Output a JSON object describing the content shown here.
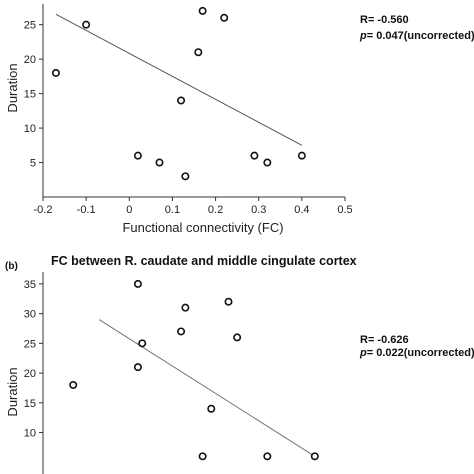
{
  "chart_data": [
    {
      "type": "scatter",
      "title": "",
      "xlabel": "Functional connectivity (FC)",
      "ylabel": "Duration",
      "xlim": [
        -0.2,
        0.5
      ],
      "ylim": [
        0,
        28
      ],
      "x_ticks": [
        "-0.2",
        "-0.1",
        "0",
        "0.1",
        "0.2",
        "0.3",
        "0.4",
        "0.5"
      ],
      "y_ticks": [
        "5",
        "10",
        "15",
        "20",
        "25"
      ],
      "points": [
        {
          "x": -0.17,
          "y": 18
        },
        {
          "x": -0.1,
          "y": 25
        },
        {
          "x": 0.02,
          "y": 6
        },
        {
          "x": 0.07,
          "y": 5
        },
        {
          "x": 0.12,
          "y": 14
        },
        {
          "x": 0.13,
          "y": 3
        },
        {
          "x": 0.16,
          "y": 21
        },
        {
          "x": 0.17,
          "y": 27
        },
        {
          "x": 0.22,
          "y": 26
        },
        {
          "x": 0.29,
          "y": 6
        },
        {
          "x": 0.32,
          "y": 5
        },
        {
          "x": 0.4,
          "y": 6
        }
      ],
      "fit_line": {
        "x": [
          -0.17,
          0.4
        ],
        "y": [
          26.5,
          7.5
        ]
      },
      "stat_r": "R= -0.560",
      "stat_p_prefix": "p",
      "stat_p_suffix": "= 0.047(uncorrected)",
      "grid": false
    },
    {
      "type": "scatter",
      "panel_label": "(b)",
      "title": "FC between R. caudate and middle cingulate cortex",
      "xlabel": "",
      "ylabel": "Duration",
      "xlim": [
        -0.2,
        0.5
      ],
      "ylim": [
        0,
        37
      ],
      "y_ticks": [
        "10",
        "15",
        "20",
        "25",
        "30",
        "35"
      ],
      "points": [
        {
          "x": -0.13,
          "y": 18
        },
        {
          "x": 0.02,
          "y": 21
        },
        {
          "x": 0.02,
          "y": 35
        },
        {
          "x": 0.03,
          "y": 25
        },
        {
          "x": 0.12,
          "y": 27
        },
        {
          "x": 0.13,
          "y": 31
        },
        {
          "x": 0.17,
          "y": 6
        },
        {
          "x": 0.19,
          "y": 14
        },
        {
          "x": 0.23,
          "y": 32
        },
        {
          "x": 0.25,
          "y": 26
        },
        {
          "x": 0.32,
          "y": 6
        },
        {
          "x": 0.43,
          "y": 6
        }
      ],
      "fit_line": {
        "x": [
          -0.07,
          0.43
        ],
        "y": [
          29,
          6
        ]
      },
      "stat_r": "R= -0.626",
      "stat_p_prefix": "p",
      "stat_p_suffix": "= 0.022(uncorrected)",
      "grid": false
    }
  ]
}
